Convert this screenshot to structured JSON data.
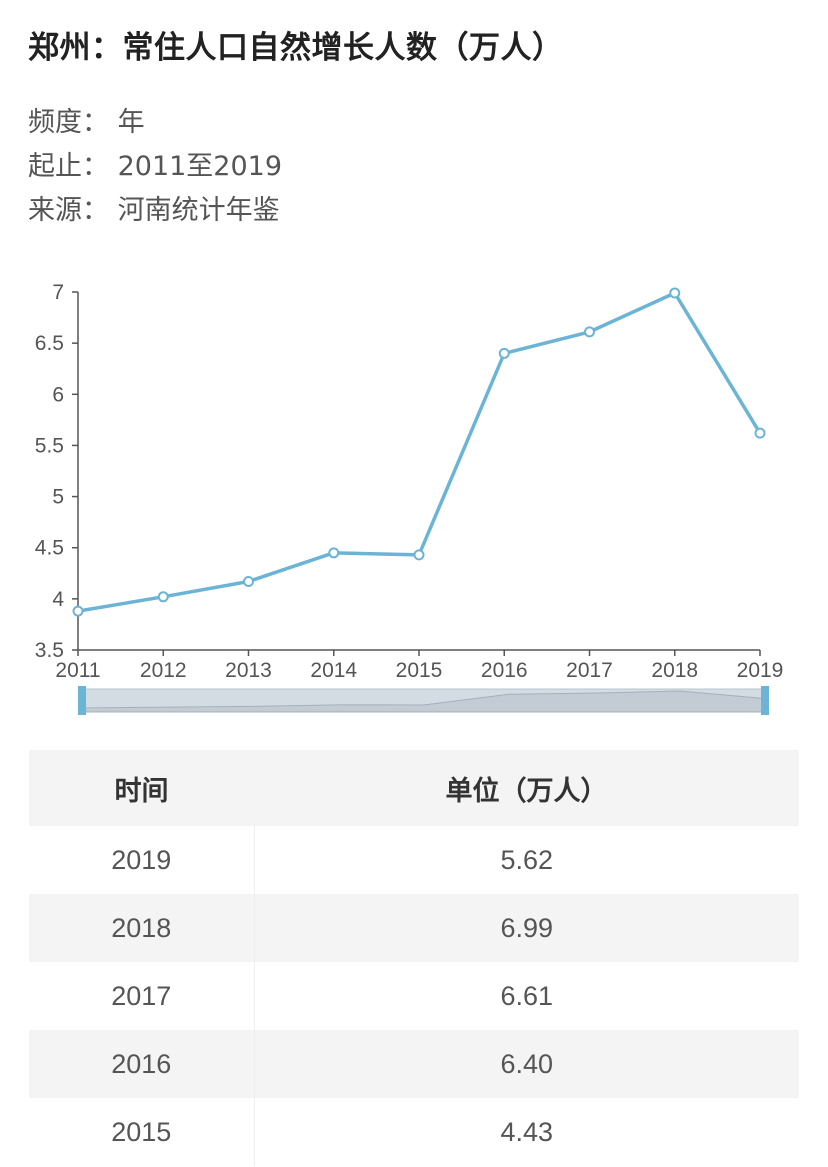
{
  "title": "郑州：常住人口自然增长人数（万人）",
  "meta": {
    "frequency": "频度：  年",
    "range": "起止：  2011至2019",
    "source": "来源：  河南统计年鉴"
  },
  "chart_data": {
    "type": "line",
    "categories": [
      "2011",
      "2012",
      "2013",
      "2014",
      "2015",
      "2016",
      "2017",
      "2018",
      "2019"
    ],
    "series": [
      {
        "values": [
          3.88,
          4.02,
          4.17,
          4.45,
          4.43,
          6.4,
          6.61,
          6.99,
          5.62
        ]
      }
    ],
    "yticks": [
      "3.5",
      "4",
      "4.5",
      "5",
      "5.5",
      "6",
      "6.5",
      "7"
    ],
    "ylim": [
      3.5,
      7
    ],
    "grid": false,
    "line_color": "#6cb4d6",
    "slider_color": "#6cb4d6"
  },
  "table": {
    "headers": [
      "时间",
      "单位（万人）"
    ],
    "rows": [
      [
        "2019",
        "5.62"
      ],
      [
        "2018",
        "6.99"
      ],
      [
        "2017",
        "6.61"
      ],
      [
        "2016",
        "6.40"
      ],
      [
        "2015",
        "4.43"
      ]
    ]
  }
}
